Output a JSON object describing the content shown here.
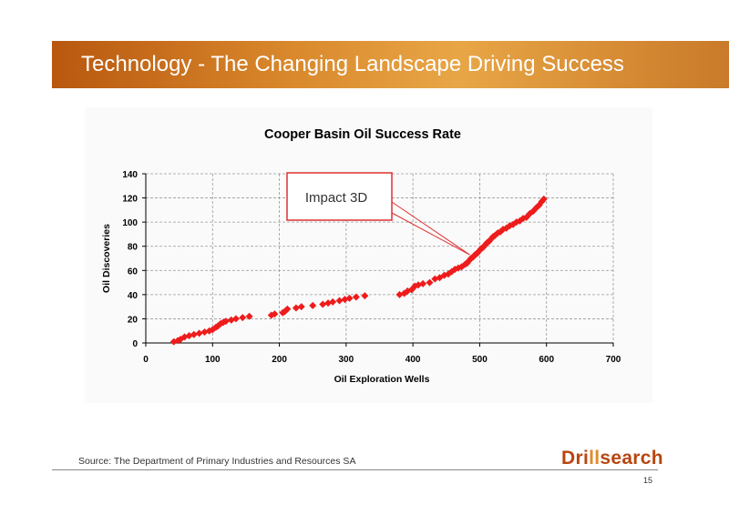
{
  "slide": {
    "title": "Technology - The Changing Landscape Driving Success",
    "source": "Source: The Department of Primary Industries and Resources SA",
    "logo_text": "Drillsearch",
    "page_number": "15",
    "banner_color": "#c8701e"
  },
  "chart_data": {
    "type": "scatter",
    "title": "Cooper Basin Oil Success Rate",
    "xlabel": "Oil Exploration Wells",
    "ylabel": "Oil Discoveries",
    "xlim": [
      0,
      700
    ],
    "ylim": [
      0,
      140
    ],
    "xticks": [
      0,
      100,
      200,
      300,
      400,
      500,
      600,
      700
    ],
    "yticks": [
      0,
      20,
      40,
      60,
      80,
      100,
      120,
      140
    ],
    "grid": true,
    "marker": "diamond",
    "color": "#ee1c1c",
    "annotation": {
      "text": "Impact 3D",
      "points_to": [
        485,
        73
      ]
    },
    "series": [
      {
        "points": [
          [
            42,
            1
          ],
          [
            48,
            2
          ],
          [
            52,
            3
          ],
          [
            58,
            5
          ],
          [
            65,
            6
          ],
          [
            72,
            7
          ],
          [
            80,
            8
          ],
          [
            88,
            9
          ],
          [
            95,
            10
          ],
          [
            100,
            11
          ],
          [
            105,
            13
          ],
          [
            108,
            14
          ],
          [
            112,
            16
          ],
          [
            116,
            17
          ],
          [
            120,
            18
          ],
          [
            128,
            19
          ],
          [
            135,
            20
          ],
          [
            145,
            21
          ],
          [
            155,
            22
          ],
          [
            188,
            23
          ],
          [
            193,
            24
          ],
          [
            205,
            25
          ],
          [
            208,
            26
          ],
          [
            212,
            28
          ],
          [
            225,
            29
          ],
          [
            233,
            30
          ],
          [
            250,
            31
          ],
          [
            265,
            32
          ],
          [
            273,
            33
          ],
          [
            280,
            34
          ],
          [
            290,
            35
          ],
          [
            298,
            36
          ],
          [
            305,
            37
          ],
          [
            315,
            38
          ],
          [
            328,
            39
          ],
          [
            380,
            40
          ],
          [
            387,
            41
          ],
          [
            392,
            43
          ],
          [
            398,
            44
          ],
          [
            403,
            47
          ],
          [
            408,
            48
          ],
          [
            415,
            49
          ],
          [
            425,
            50
          ],
          [
            433,
            53
          ],
          [
            440,
            54
          ],
          [
            447,
            56
          ],
          [
            453,
            57
          ],
          [
            458,
            59
          ],
          [
            463,
            61
          ],
          [
            468,
            62
          ],
          [
            473,
            63
          ],
          [
            478,
            65
          ],
          [
            481,
            66
          ],
          [
            484,
            68
          ],
          [
            487,
            70
          ],
          [
            490,
            71
          ],
          [
            493,
            73
          ],
          [
            496,
            74
          ],
          [
            499,
            76
          ],
          [
            502,
            78
          ],
          [
            505,
            79
          ],
          [
            508,
            81
          ],
          [
            511,
            83
          ],
          [
            514,
            84
          ],
          [
            517,
            86
          ],
          [
            520,
            88
          ],
          [
            523,
            89
          ],
          [
            527,
            91
          ],
          [
            531,
            92
          ],
          [
            535,
            94
          ],
          [
            540,
            95
          ],
          [
            545,
            97
          ],
          [
            550,
            98
          ],
          [
            555,
            100
          ],
          [
            560,
            101
          ],
          [
            565,
            103
          ],
          [
            570,
            104
          ],
          [
            575,
            107
          ],
          [
            580,
            109
          ],
          [
            585,
            112
          ],
          [
            589,
            114
          ],
          [
            593,
            117
          ],
          [
            596,
            119
          ]
        ]
      }
    ]
  }
}
